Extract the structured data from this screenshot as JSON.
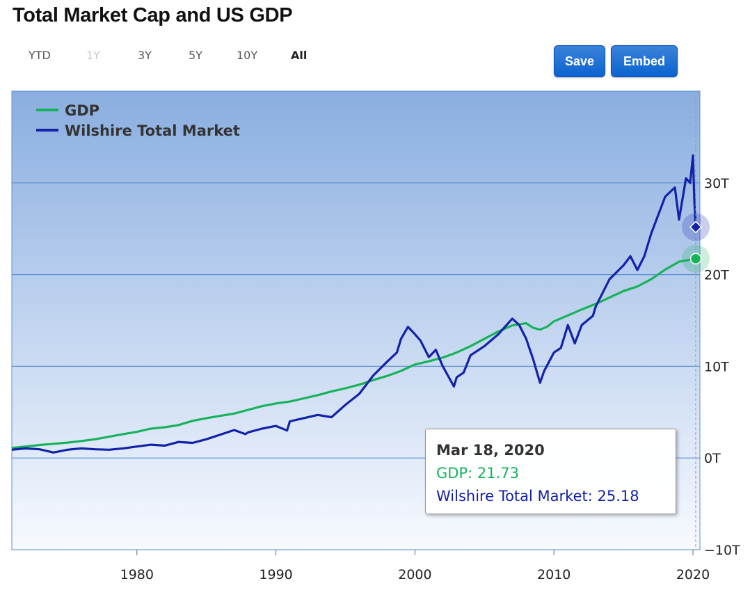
{
  "title": "Total Market Cap and US GDP",
  "range_buttons": [
    {
      "label": "YTD",
      "state": "normal"
    },
    {
      "label": "1Y",
      "state": "disabled"
    },
    {
      "label": "3Y",
      "state": "normal"
    },
    {
      "label": "5Y",
      "state": "normal"
    },
    {
      "label": "10Y",
      "state": "normal"
    },
    {
      "label": "All",
      "state": "active"
    }
  ],
  "actions": {
    "save_label": "Save",
    "embed_label": "Embed"
  },
  "colors": {
    "gdp": "#17b35a",
    "wilshire": "#1322a8",
    "plot_bg_top": "#8aaee0",
    "plot_bg_bottom": "#f8faff",
    "gridline": "#5b8fd4",
    "button": "#0a63d0"
  },
  "tooltip": {
    "date": "Mar 18, 2020",
    "gdp_text": "GDP: 21.73",
    "wilshire_text": "Wilshire Total Market: 25.18"
  },
  "chart_data": {
    "type": "line",
    "title": "Total Market Cap and US GDP",
    "xlabel": "",
    "ylabel": "",
    "xlim": [
      1971.0,
      2020.5
    ],
    "ylim": [
      -10,
      40
    ],
    "y_ticks": [
      -10,
      0,
      10,
      20,
      30
    ],
    "y_tick_labels": [
      "−10T",
      "0T",
      "10T",
      "20T",
      "30T"
    ],
    "x_ticks": [
      1980,
      1990,
      2000,
      2010,
      2020
    ],
    "x_tick_labels": [
      "1980",
      "1990",
      "2000",
      "2010",
      "2020"
    ],
    "legend_position": "top-left",
    "grid": true,
    "series": [
      {
        "name": "GDP",
        "color": "#17b35a",
        "x": [
          1971,
          1972,
          1973,
          1974,
          1975,
          1976,
          1977,
          1978,
          1979,
          1980,
          1981,
          1982,
          1983,
          1984,
          1985,
          1986,
          1987,
          1988,
          1989,
          1990,
          1991,
          1992,
          1993,
          1994,
          1995,
          1996,
          1997,
          1998,
          1999,
          2000,
          2001,
          2002,
          2003,
          2004,
          2005,
          2006,
          2007,
          2008,
          2008.5,
          2009,
          2009.5,
          2010,
          2011,
          2012,
          2013,
          2014,
          2015,
          2016,
          2017,
          2018,
          2019,
          2020.2
        ],
        "y": [
          1.1,
          1.25,
          1.42,
          1.55,
          1.68,
          1.85,
          2.05,
          2.32,
          2.6,
          2.85,
          3.2,
          3.35,
          3.6,
          4.05,
          4.35,
          4.6,
          4.85,
          5.25,
          5.65,
          5.95,
          6.15,
          6.5,
          6.85,
          7.25,
          7.6,
          8.0,
          8.5,
          8.95,
          9.5,
          10.2,
          10.55,
          10.95,
          11.5,
          12.2,
          13.0,
          13.8,
          14.45,
          14.7,
          14.2,
          14.0,
          14.3,
          14.9,
          15.55,
          16.2,
          16.8,
          17.5,
          18.2,
          18.7,
          19.5,
          20.55,
          21.4,
          21.73
        ]
      },
      {
        "name": "Wilshire Total Market",
        "color": "#1322a8",
        "x": [
          1971,
          1972,
          1973,
          1974,
          1975,
          1976,
          1977,
          1978,
          1979,
          1980,
          1981,
          1982,
          1983,
          1984,
          1985,
          1986,
          1987,
          1987.8,
          1988,
          1989,
          1990,
          1990.8,
          1991,
          1992,
          1993,
          1994,
          1995,
          1996,
          1997,
          1998,
          1998.7,
          1999,
          1999.5,
          2000,
          2000.4,
          2001,
          2001.5,
          2002,
          2002.8,
          2003,
          2003.5,
          2004,
          2005,
          2006,
          2007,
          2007.5,
          2008,
          2008.5,
          2009,
          2009.3,
          2010,
          2010.5,
          2011,
          2011.5,
          2012,
          2012.8,
          2013,
          2014,
          2015,
          2015.5,
          2016,
          2016.5,
          2017,
          2017.5,
          2018,
          2018.7,
          2019,
          2019.5,
          2019.8,
          2020.0,
          2020.1,
          2020.2
        ],
        "y": [
          0.9,
          1.05,
          0.95,
          0.6,
          0.9,
          1.05,
          0.95,
          0.9,
          1.05,
          1.25,
          1.45,
          1.35,
          1.75,
          1.65,
          2.05,
          2.55,
          3.05,
          2.6,
          2.8,
          3.2,
          3.5,
          3.0,
          4.0,
          4.35,
          4.7,
          4.45,
          5.8,
          7.0,
          9.0,
          10.5,
          11.5,
          13.0,
          14.3,
          13.5,
          12.8,
          11.0,
          11.8,
          10.0,
          7.8,
          8.8,
          9.3,
          11.2,
          12.2,
          13.5,
          15.2,
          14.5,
          13.0,
          10.8,
          8.2,
          9.5,
          11.5,
          12.0,
          14.5,
          12.5,
          14.5,
          15.5,
          16.5,
          19.5,
          21.0,
          22.0,
          20.5,
          22.0,
          24.5,
          26.5,
          28.5,
          29.5,
          26.0,
          30.5,
          30.0,
          33.0,
          28.0,
          25.18
        ]
      }
    ]
  }
}
